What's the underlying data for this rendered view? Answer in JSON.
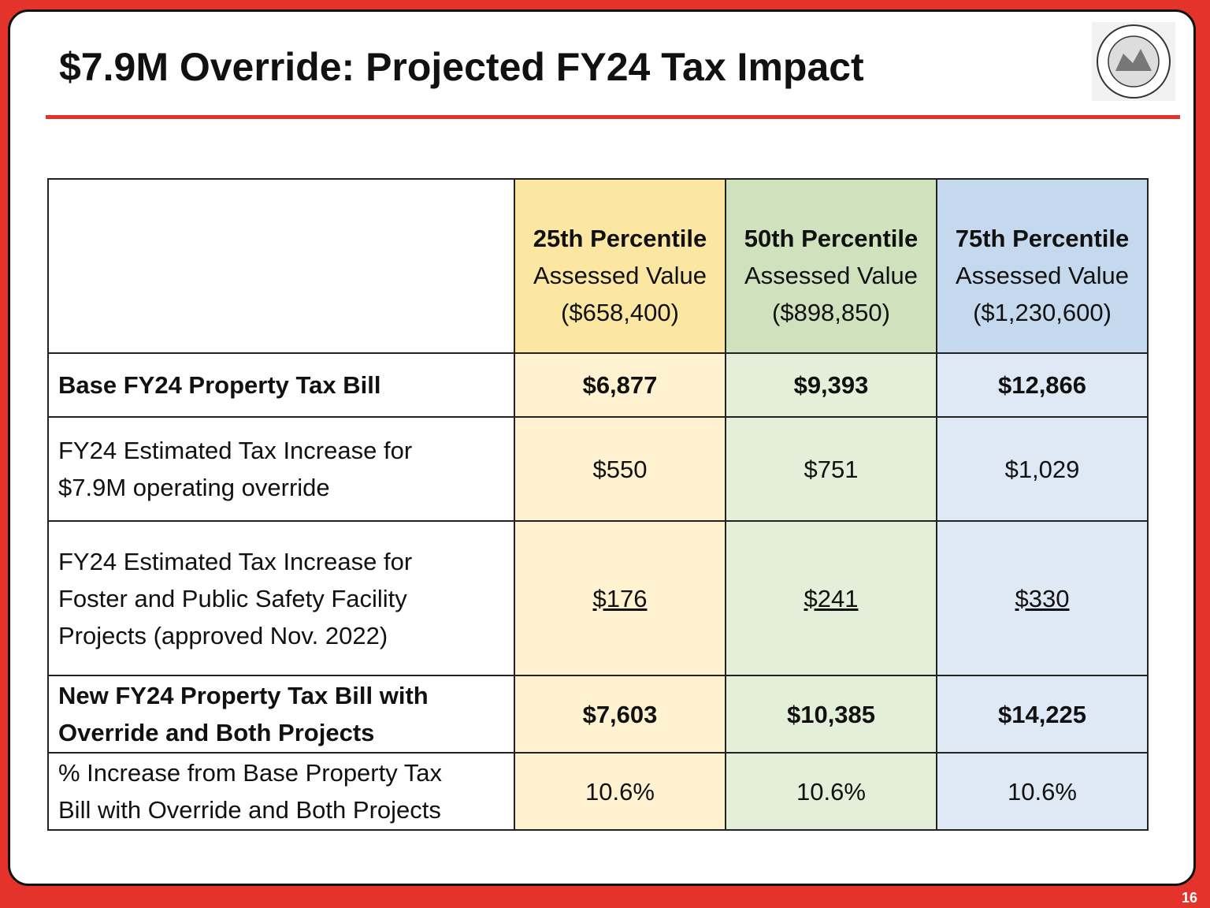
{
  "header": {
    "title": "$7.9M Override: Projected FY24 Tax Impact"
  },
  "table": {
    "columns": [
      {
        "percentile": "25th Percentile",
        "measure": "Assessed Value",
        "value": "($658,400)"
      },
      {
        "percentile": "50th Percentile",
        "measure": "Assessed Value",
        "value": "($898,850)"
      },
      {
        "percentile": "75th Percentile",
        "measure": "Assessed Value",
        "value": "($1,230,600)"
      }
    ],
    "rows": [
      {
        "label": [
          "Base FY24 Property Tax Bill"
        ],
        "values": [
          "$6,877",
          "$9,393",
          "$12,866"
        ]
      },
      {
        "label": [
          "FY24 Estimated Tax Increase for",
          "$7.9M operating override"
        ],
        "values": [
          "$550",
          "$751",
          "$1,029"
        ]
      },
      {
        "label": [
          "FY24 Estimated Tax Increase for",
          "Foster and Public Safety Facility",
          "Projects (approved Nov. 2022)"
        ],
        "values": [
          "$176",
          "$241",
          "$330"
        ]
      },
      {
        "label": [
          "New FY24 Property Tax Bill with",
          "Override and Both Projects"
        ],
        "values": [
          "$7,603",
          "$10,385",
          "$14,225"
        ]
      },
      {
        "label": [
          "% Increase from Base Property Tax",
          "Bill with Override and Both Projects"
        ],
        "values": [
          "10.6%",
          "10.6%",
          "10.6%"
        ]
      }
    ]
  },
  "footer": {
    "page_number": "16"
  }
}
